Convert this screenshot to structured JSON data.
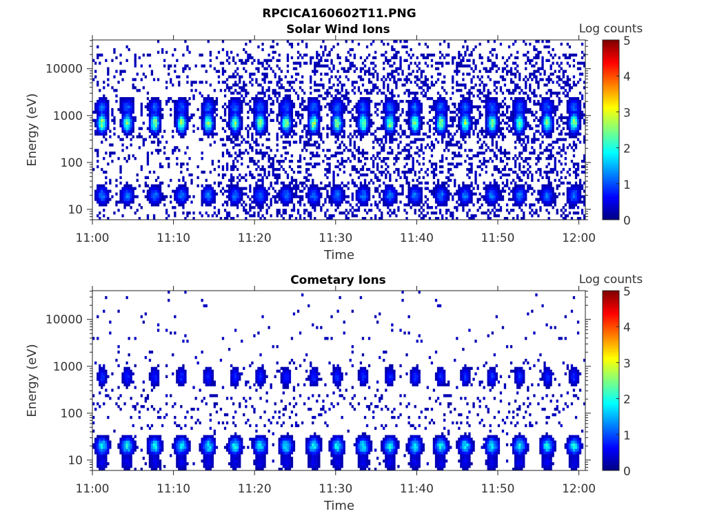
{
  "chart_data": {
    "type": "heatmap",
    "figure_title": "RPCICA160602T11.PNG",
    "panels": [
      {
        "title": "Solar Wind Ions",
        "xlabel": "Time",
        "ylabel": "Energy (eV)",
        "xticks": [
          "11:00",
          "11:10",
          "11:20",
          "11:30",
          "11:40",
          "11:50",
          "12:00"
        ],
        "xtick_minutes": [
          0,
          10,
          20,
          30,
          40,
          50,
          60
        ],
        "xlim_minutes": [
          0,
          60.8
        ],
        "yscale": "log",
        "ylim": [
          6,
          41000
        ],
        "yticks": [
          "10",
          "100",
          "1000",
          "10000"
        ],
        "ytick_values": [
          10,
          100,
          1000,
          10000
        ],
        "colorbar": {
          "label": "Log counts",
          "range": [
            0,
            5
          ],
          "ticks": [
            "0",
            "1",
            "2",
            "3",
            "4",
            "5"
          ],
          "colormap": "jet"
        },
        "pulse_times_minutes": [
          1.2,
          4.3,
          7.7,
          11.0,
          14.3,
          17.6,
          20.7,
          23.9,
          27.3,
          30.2,
          33.4,
          36.7,
          39.8,
          43.0,
          46.0,
          49.3,
          52.7,
          56.1,
          59.4
        ],
        "components": [
          {
            "energy_eV": 700,
            "peak_log_counts": 2.8
          },
          {
            "energy_eV": 1500,
            "peak_log_counts": 1.2
          },
          {
            "energy_eV": 20,
            "peak_log_counts": 1.3
          }
        ],
        "background_log_counts": 0.3
      },
      {
        "title": "Cometary Ions",
        "xlabel": "Time",
        "ylabel": "Energy (eV)",
        "xticks": [
          "11:00",
          "11:10",
          "11:20",
          "11:30",
          "11:40",
          "11:50",
          "12:00"
        ],
        "xtick_minutes": [
          0,
          10,
          20,
          30,
          40,
          50,
          60
        ],
        "xlim_minutes": [
          0,
          60.8
        ],
        "yscale": "log",
        "ylim": [
          6,
          41000
        ],
        "yticks": [
          "10",
          "100",
          "1000",
          "10000"
        ],
        "ytick_values": [
          10,
          100,
          1000,
          10000
        ],
        "colorbar": {
          "label": "Log counts",
          "range": [
            0,
            5
          ],
          "ticks": [
            "0",
            "1",
            "2",
            "3",
            "4",
            "5"
          ],
          "colormap": "jet"
        },
        "pulse_times_minutes": [
          1.2,
          4.3,
          7.7,
          11.0,
          14.3,
          17.6,
          20.7,
          23.9,
          27.3,
          30.2,
          33.4,
          36.7,
          39.8,
          43.0,
          46.0,
          49.3,
          52.7,
          56.1,
          59.4
        ],
        "components": [
          {
            "energy_eV": 600,
            "peak_log_counts": 0.9
          },
          {
            "energy_eV": 20,
            "peak_log_counts": 2.0
          },
          {
            "energy_eV": 9,
            "peak_log_counts": 0.6
          }
        ],
        "background_log_counts": 0.3
      }
    ]
  }
}
